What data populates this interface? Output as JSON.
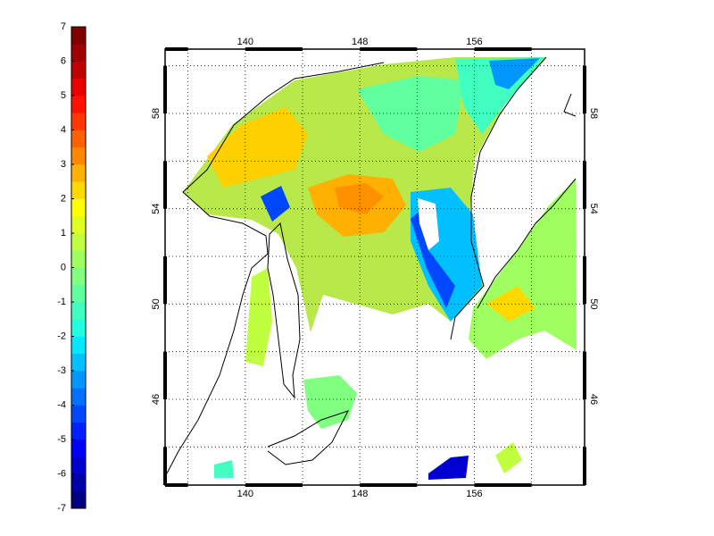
{
  "colorbar": {
    "lim": [
      -7,
      7
    ],
    "ticks": [
      -7,
      -6,
      -5,
      -4,
      -3,
      -2,
      -1,
      0,
      1,
      2,
      3,
      4,
      5,
      6,
      7
    ],
    "colors": [
      "#000080",
      "#0000a8",
      "#0000d0",
      "#0000f8",
      "#0020ff",
      "#0048ff",
      "#0070ff",
      "#0098ff",
      "#00c0ff",
      "#00e8ff",
      "#20ffe0",
      "#40ffc0",
      "#60ffa0",
      "#80ff80",
      "#a0ff60",
      "#c0ff40",
      "#e0ff20",
      "#ffff00",
      "#ffd800",
      "#ffb000",
      "#ff8800",
      "#ff6000",
      "#ff3800",
      "#ff1000",
      "#e80000",
      "#c00000",
      "#a00000",
      "#800000"
    ]
  },
  "map": {
    "lon_lim": [
      134.4,
      163.7
    ],
    "lat_lim": [
      42.4,
      60.7
    ],
    "lon_ticks": [
      140,
      148,
      156
    ],
    "lat_ticks": [
      46,
      50,
      54,
      58
    ],
    "lon_grid": [
      136,
      144,
      152,
      160
    ],
    "lat_grid": [
      44,
      48,
      52,
      56,
      60
    ]
  }
}
